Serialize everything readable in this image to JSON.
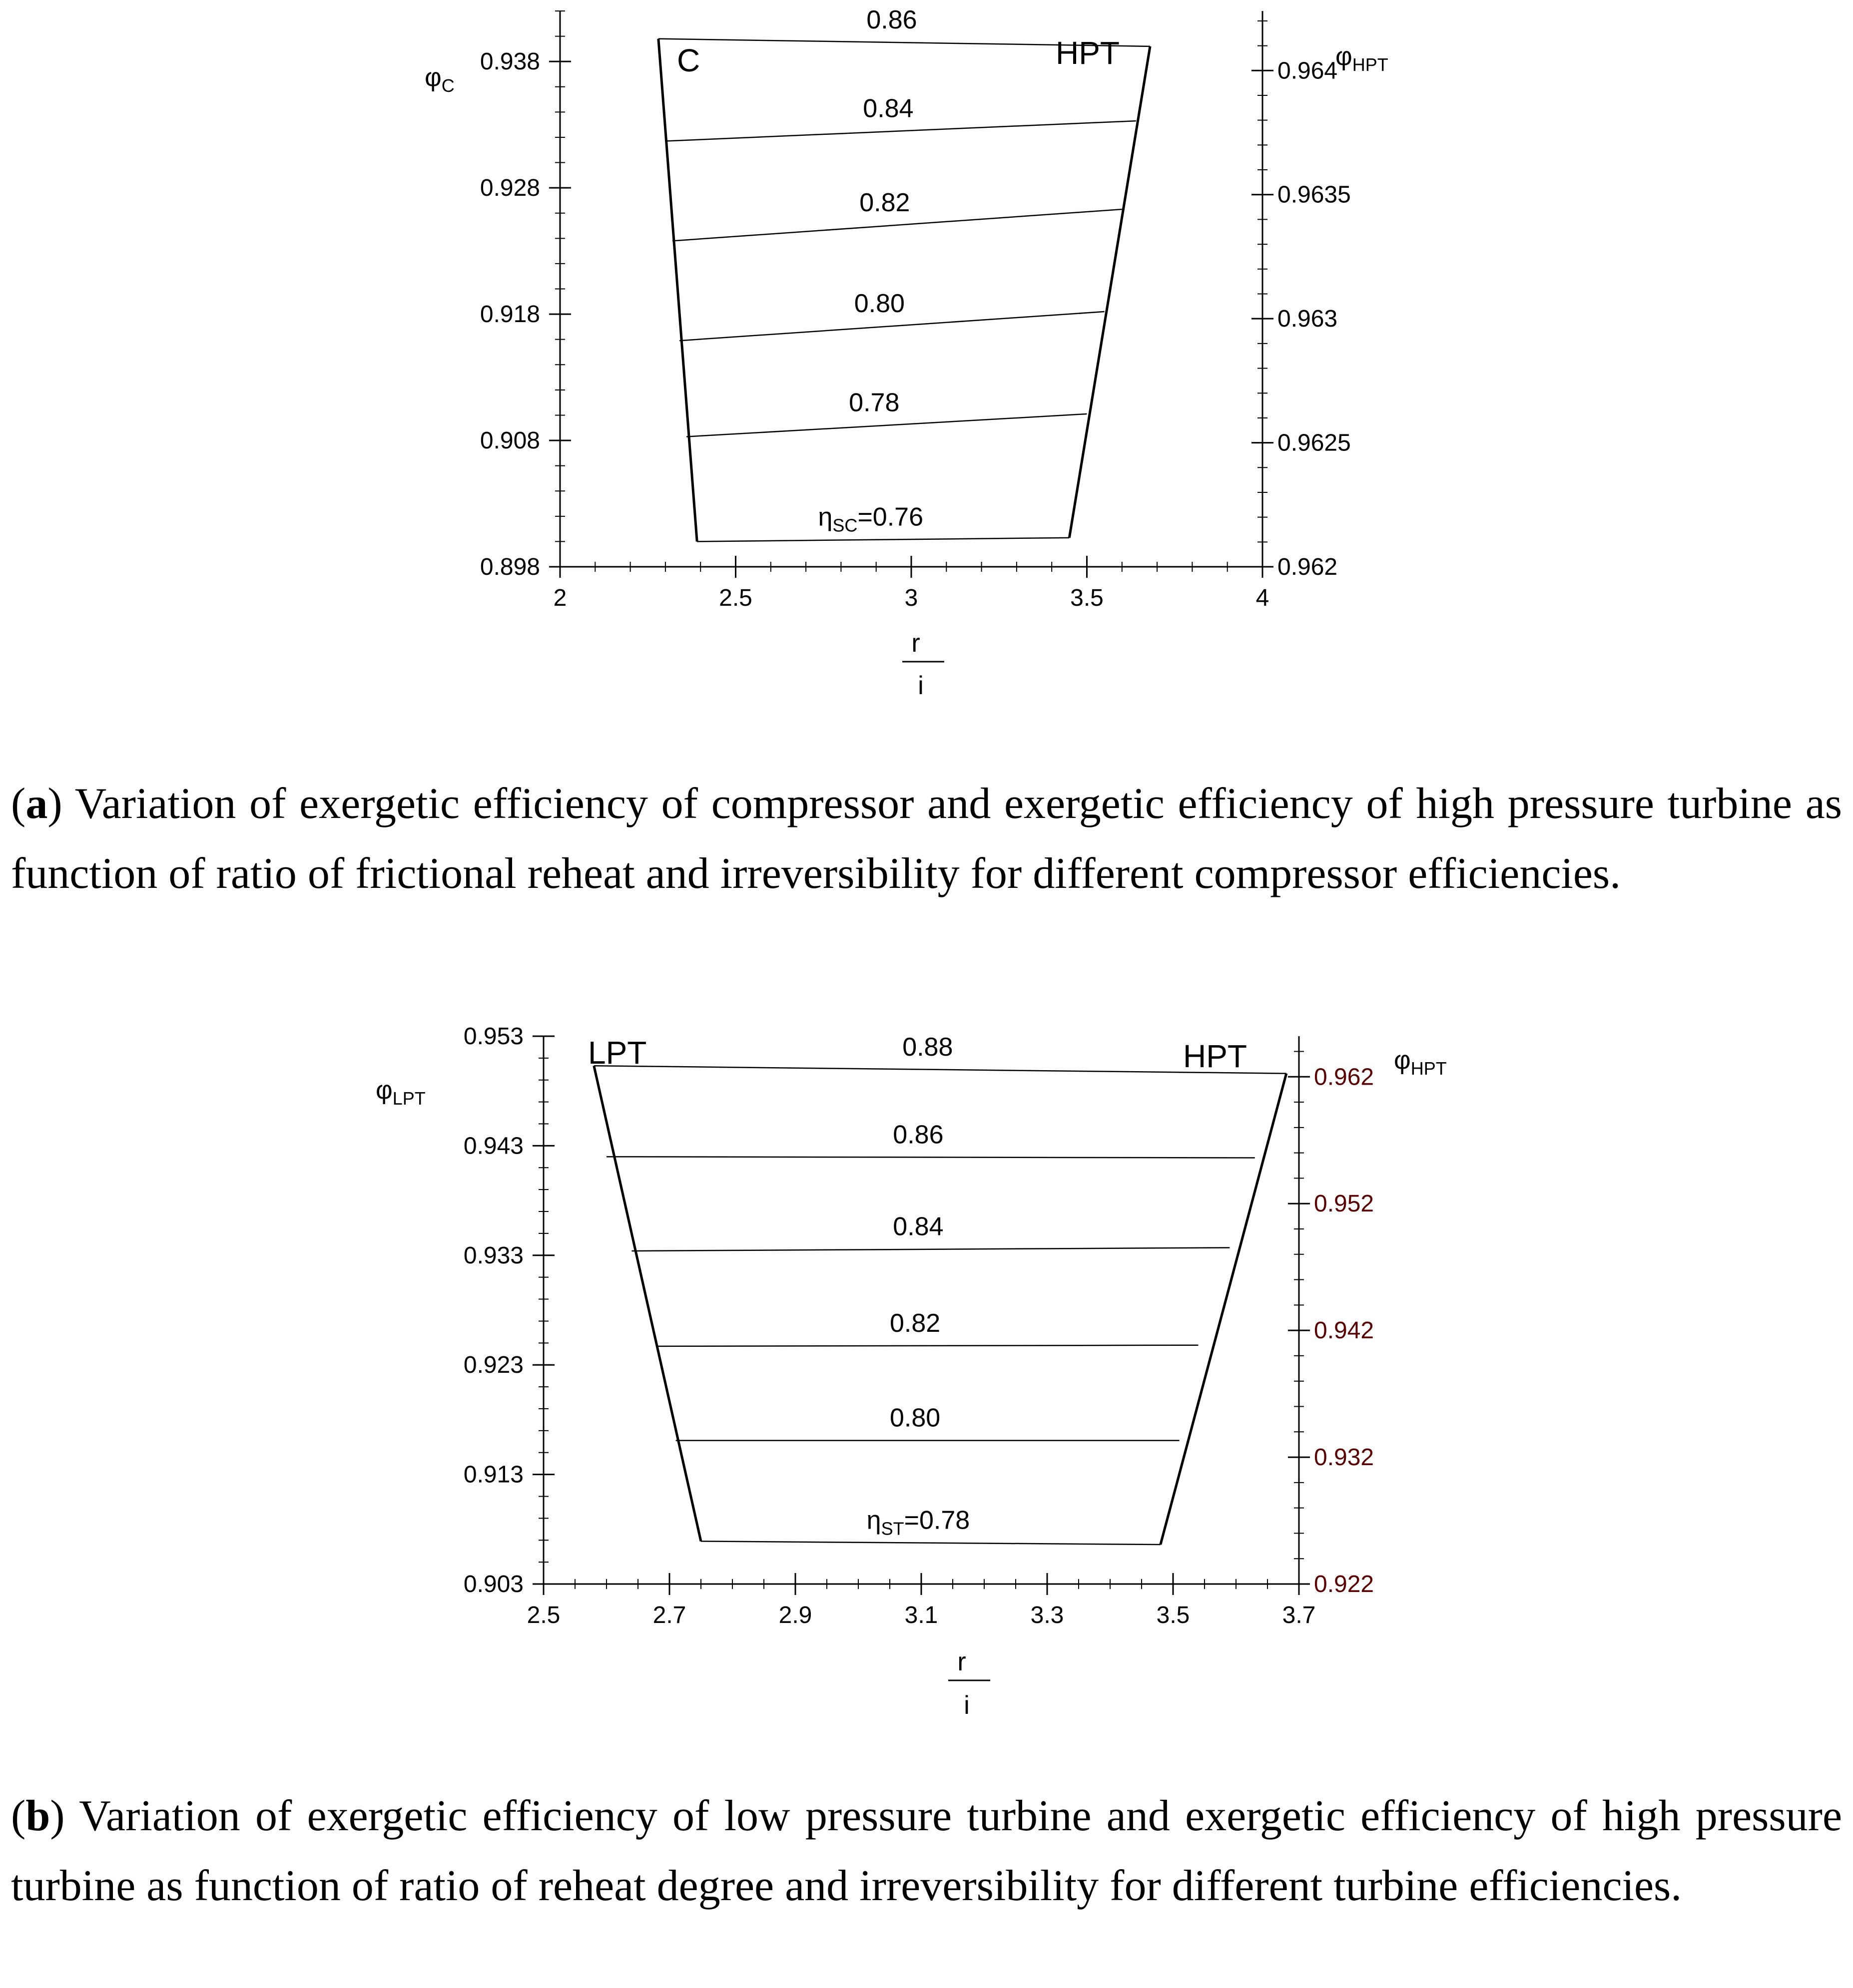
{
  "chart_data": [
    {
      "type": "line",
      "id": "a",
      "title": "",
      "xlabel_num": "r",
      "xlabel_den": "i",
      "ylabel_left": {
        "base": "φ",
        "sub": "C"
      },
      "ylabel_right": {
        "base": "φ",
        "sub": "HPT"
      },
      "xlim": [
        2,
        4
      ],
      "xticks": [
        "2",
        "2.5",
        "3",
        "3.5",
        "4"
      ],
      "ylim_left": [
        0.898,
        0.942
      ],
      "yticks_left": [
        "0.898",
        "0.908",
        "0.918",
        "0.928",
        "0.938"
      ],
      "ylim_right": [
        0.962,
        0.96424
      ],
      "yticks_right": [
        "0.962",
        "0.9625",
        "0.963",
        "0.9635",
        "0.964"
      ],
      "labels": {
        "left_curve": "C",
        "right_curve": "HPT"
      },
      "boundary_left": {
        "name": "C",
        "points": [
          [
            2.28,
            0.9398
          ],
          [
            2.39,
            0.9
          ]
        ]
      },
      "boundary_right": {
        "name": "HPT",
        "points": [
          [
            3.68,
            0.9392
          ],
          [
            3.45,
            0.9003
          ]
        ]
      },
      "series": [
        {
          "name": "0.86",
          "label": "0.86",
          "x": [
            2.28,
            3.68
          ],
          "y": [
            0.9398,
            0.9392
          ]
        },
        {
          "name": "0.84",
          "label": "0.84",
          "x": [
            2.3,
            3.64
          ],
          "y": [
            0.9317,
            0.9333
          ]
        },
        {
          "name": "0.82",
          "label": "0.82",
          "x": [
            2.32,
            3.6
          ],
          "y": [
            0.9238,
            0.9263
          ]
        },
        {
          "name": "0.80",
          "label": "0.80",
          "x": [
            2.34,
            3.55
          ],
          "y": [
            0.9159,
            0.9182
          ]
        },
        {
          "name": "0.78",
          "label": "0.78",
          "x": [
            2.36,
            3.5
          ],
          "y": [
            0.9083,
            0.9101
          ]
        },
        {
          "name": "0.76",
          "label": "0.76",
          "label_prefix": "η",
          "label_sub": "SC",
          "label_suffix": "=0.76",
          "x": [
            2.39,
            3.45
          ],
          "y": [
            0.9,
            0.9003
          ]
        }
      ]
    },
    {
      "type": "line",
      "id": "b",
      "title": "",
      "xlabel_num": "r",
      "xlabel_den": "i",
      "ylabel_left": {
        "base": "φ",
        "sub": "LPT"
      },
      "ylabel_right": {
        "base": "φ",
        "sub": "HPT"
      },
      "xlim": [
        2.5,
        3.7
      ],
      "xticks": [
        "2.5",
        "2.7",
        "2.9",
        "3.1",
        "3.3",
        "3.5",
        "3.7"
      ],
      "ylim_left": [
        0.903,
        0.953
      ],
      "yticks_left": [
        "0.903",
        "0.913",
        "0.923",
        "0.933",
        "0.943",
        "0.953"
      ],
      "ylim_right": [
        0.922,
        0.9652
      ],
      "yticks_right": [
        "0.922",
        "0.932",
        "0.942",
        "0.952",
        "0.962"
      ],
      "labels": {
        "left_curve": "LPT",
        "right_curve": "HPT"
      },
      "boundary_left": {
        "name": "LPT",
        "points": [
          [
            2.58,
            0.9503
          ],
          [
            2.75,
            0.9069
          ]
        ]
      },
      "boundary_right": {
        "name": "HPT",
        "points": [
          [
            3.68,
            0.9496
          ],
          [
            3.48,
            0.9066
          ]
        ]
      },
      "series": [
        {
          "name": "0.88",
          "label": "0.88",
          "x": [
            2.58,
            3.68
          ],
          "y": [
            0.9503,
            0.9496
          ]
        },
        {
          "name": "0.86",
          "label": "0.86",
          "x": [
            2.6,
            3.63
          ],
          "y": [
            0.942,
            0.9419
          ]
        },
        {
          "name": "0.84",
          "label": "0.84",
          "x": [
            2.64,
            3.59
          ],
          "y": [
            0.9334,
            0.9337
          ]
        },
        {
          "name": "0.82",
          "label": "0.82",
          "x": [
            2.68,
            3.54
          ],
          "y": [
            0.9247,
            0.9248
          ]
        },
        {
          "name": "0.80",
          "label": "0.80",
          "x": [
            2.71,
            3.51
          ],
          "y": [
            0.9161,
            0.9161
          ]
        },
        {
          "name": "0.78",
          "label": "0.78",
          "label_prefix": "η",
          "label_sub": "ST",
          "label_suffix": "=0.78",
          "x": [
            2.75,
            3.48
          ],
          "y": [
            0.9069,
            0.9066
          ]
        }
      ]
    }
  ],
  "captions": {
    "a": {
      "tag": "a",
      "text": ") Variation of exergetic efficiency of compressor and exergetic efficiency of high pressure turbine as function of ratio of frictional reheat and irreversibility for different compressor efficiencies."
    },
    "b": {
      "tag": "b",
      "text": ") Variation of exergetic efficiency of low pressure turbine and exergetic efficiency of high pressure turbine as function of ratio of reheat degree and irreversibility for different turbine efficiencies."
    }
  },
  "colors": {
    "axis": "#000000",
    "line": "#000000",
    "right_tick_b": "#5a0000"
  }
}
